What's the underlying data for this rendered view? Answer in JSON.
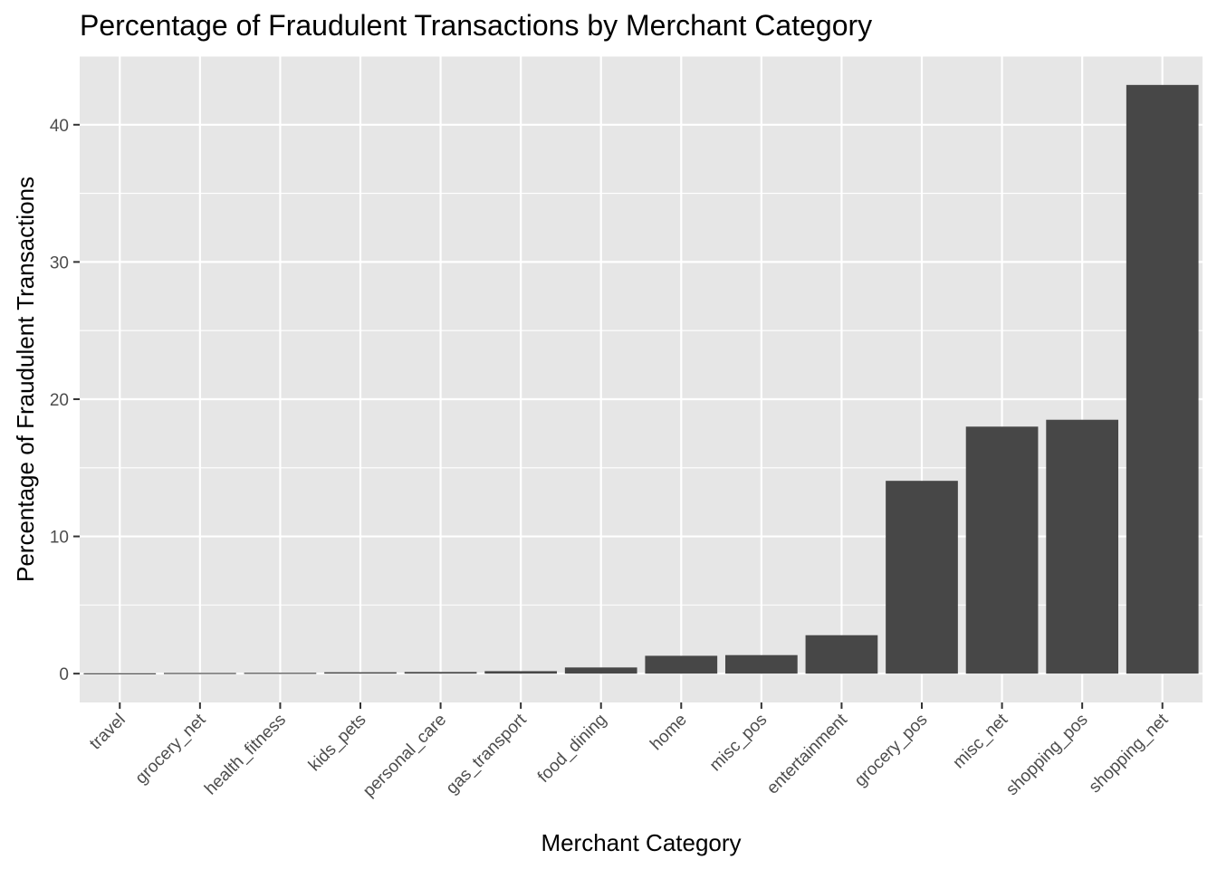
{
  "chart_data": {
    "type": "bar",
    "title": "Percentage of Fraudulent Transactions by Merchant Category",
    "xlabel": "Merchant Category",
    "ylabel": "Percentage of Fraudulent Transactions",
    "categories": [
      "travel",
      "grocery_net",
      "health_fitness",
      "kids_pets",
      "personal_care",
      "gas_transport",
      "food_dining",
      "home",
      "misc_pos",
      "entertainment",
      "grocery_pos",
      "misc_net",
      "shopping_pos",
      "shopping_net"
    ],
    "values": [
      0.03,
      0.05,
      0.06,
      0.1,
      0.12,
      0.18,
      0.45,
      1.3,
      1.35,
      2.8,
      14.05,
      18.0,
      18.5,
      42.9
    ],
    "ylim": [
      -2.1,
      45.0
    ],
    "yticks": [
      0,
      10,
      20,
      30,
      40
    ],
    "grid": true,
    "legend": "none",
    "colors": {
      "bar": "#474747",
      "panel": "#e6e6e6",
      "grid": "#ffffff",
      "tick_text": "#4d4d4d",
      "tick_mark": "#333333",
      "text": "#000000"
    }
  }
}
